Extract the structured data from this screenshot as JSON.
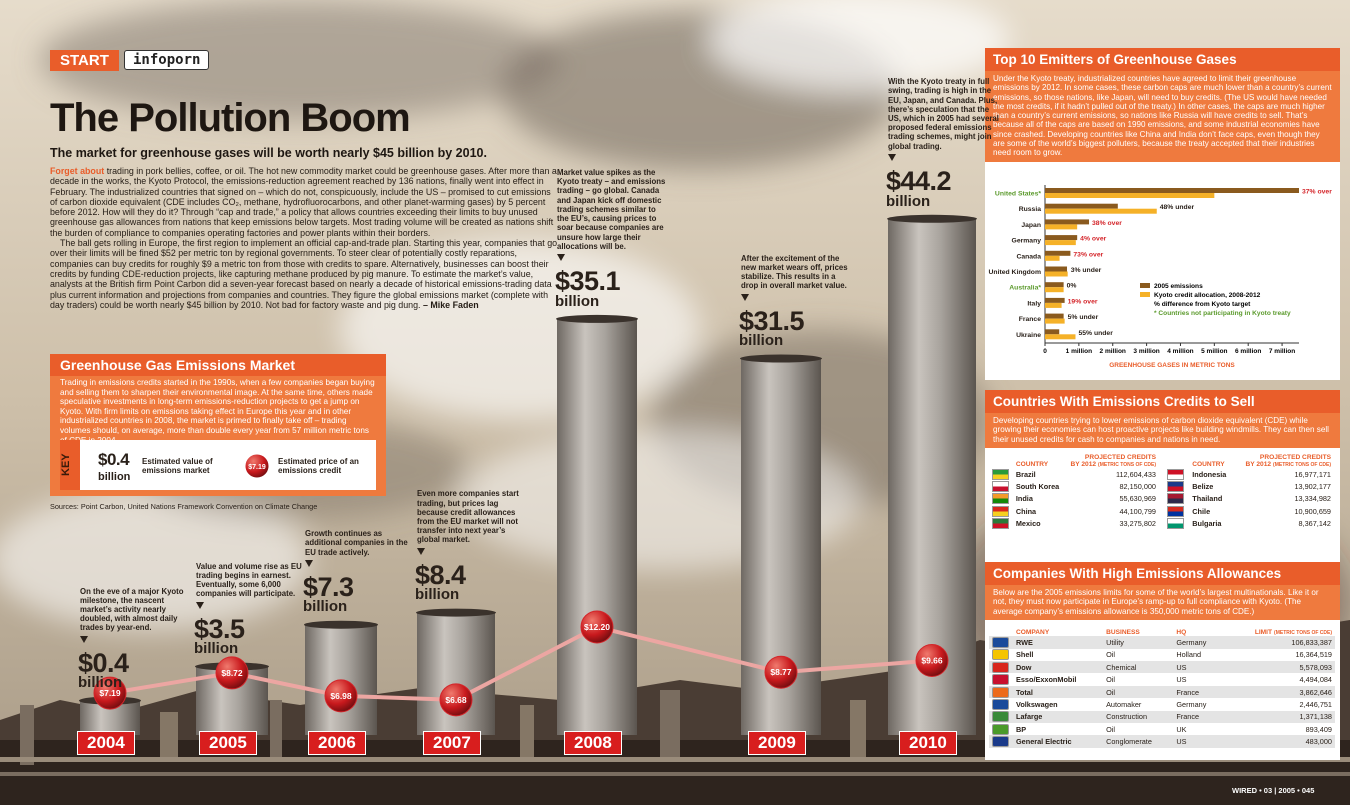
{
  "header": {
    "section": "START",
    "tag": "infoporn",
    "title": "The Pollution Boom",
    "subtitle": "The market for greenhouse gases will be worth nearly $45 billion by 2010."
  },
  "article": {
    "lead": "Forget about",
    "paragraphs": [
      " trading in pork bellies, coffee, or oil. The hot new commodity market could be greenhouse gases. After more than a decade in the works, the Kyoto Protocol, the emissions-reduction agreement reached by 136 nations, finally went into effect in February. The industrialized countries that signed on – which do not, conspicuously, include the US – promised to cut emissions of carbon dioxide equivalent (CDE includes CO₂, methane, hydrofluorocarbons, and other planet-warming gases) by 5 percent before 2012. How will they do it? Through “cap and trade,” a policy that allows countries exceeding their limits to buy unused greenhouse gas allowances from nations that keep emissions below targets. Most trading volume will be created as nations shift the burden of compliance to companies operating factories and power plants within their borders.",
      "The ball gets rolling in Europe, the first region to implement an official cap-and-trade plan. Starting this year, companies that go over their limits will be fined $52 per metric ton by regional governments. To steer clear of potentially costly reparations, companies can buy credits for roughly $9 a metric ton from those with credits to spare. Alternatively, businesses can boost their credits by funding CDE-reduction projects, like capturing methane produced by pig manure. To estimate the market’s value, analysts at the British firm Point Carbon did a seven-year forecast based on nearly a decade of historical emissions-trading data plus current information and projections from companies and countries. They figure the global emissions market (complete with day traders) could be worth nearly $45 billion by 2010. Not bad for factory waste and pig dung. "
    ],
    "byline": "– Mike Faden"
  },
  "chart_data": [
    {
      "type": "smokestack",
      "title": "Greenhouse Gas Emissions Market",
      "text": "Trading in emissions credits started in the 1990s, when a few companies began buying and selling them to sharpen their environmental image. At the same time, others made speculative investments in long-term emissions-reduction projects to get a jump on Kyoto. With firm limits on emissions taking effect in Europe this year and in other industrialized countries in 2008, the market is primed to finally take off – trading volumes should, on average, more than double every year from 57 million metric tons of CDE in 2004.",
      "key_label": "KEY",
      "sources": "Sources: Point Carbon, United Nations Framework Convention on Climate Change",
      "categories": [
        "2004",
        "2005",
        "2006",
        "2007",
        "2008",
        "2009",
        "2010"
      ],
      "unit": "billion",
      "series": [
        {
          "name": "Estimated value of emissions market",
          "color": "#9a9590",
          "values": [
            0.4,
            3.5,
            7.3,
            8.4,
            35.1,
            31.5,
            44.2
          ],
          "value_labels": [
            "$0.4",
            "$3.5",
            "$7.3",
            "$8.4",
            "$35.1",
            "$31.5",
            "$44.2"
          ]
        },
        {
          "name": "Estimated price of an emissions credit",
          "color": "#d4252a",
          "values": [
            7.19,
            8.72,
            6.98,
            6.68,
            12.2,
            8.77,
            9.66
          ],
          "value_labels": [
            "$7.19",
            "$8.72",
            "$6.98",
            "$6.68",
            "$12.20",
            "$8.77",
            "$9.66"
          ]
        }
      ],
      "annotations": [
        "On the eve of a major Kyoto milestone, the nascent market’s activity nearly doubled, with almost daily trades by year-end.",
        "Value and volume rise as EU trading begins in earnest. Eventually, some 6,000 companies will participate.",
        "Growth continues as additional companies in the EU trade actively.",
        "Even more companies start trading, but prices lag because credit allowances from the EU market will not transfer into next year’s global market.",
        "Market value spikes as the Kyoto treaty – and emissions trading – go global. Canada and Japan kick off domestic trading schemes similar to the EU’s, causing prices to soar because companies are unsure how large their allocations will be.",
        "After the excitement of the new market wears off, prices stabilize. This results in a drop in overall market value.",
        "With the Kyoto treaty in full swing, trading is high in the EU, Japan, and Canada. Plus, there’s speculation that the US, which in 2005 had several proposed federal emissions trading schemes, might join global trading."
      ]
    },
    {
      "type": "bar",
      "title": "Top 10 Emitters of Greenhouse Gases",
      "text": "Under the Kyoto treaty, industrialized countries have agreed to limit their greenhouse emissions by 2012. In some cases, these carbon caps are much lower than a country’s current emissions, so those nations, like Japan, will need to buy credits. (The US would have needed the most credits, if it hadn’t pulled out of the treaty.) In other cases, the caps are much higher than a country’s current emissions, so nations like Russia will have credits to sell. That’s because all of the caps are based on 1990 emissions, and some industrial economies have since crashed. Developing countries like China and India don’t face caps, even though they are some of the world’s biggest polluters, because the treaty accepted that their industries need room to grow.",
      "categories": [
        "United States*",
        "Russia",
        "Japan",
        "Germany",
        "Canada",
        "United Kingdom",
        "Australia*",
        "Italy",
        "France",
        "Ukraine"
      ],
      "non_kyoto": [
        true,
        false,
        false,
        false,
        false,
        false,
        true,
        false,
        false,
        false
      ],
      "non_kyoto_color": "#5b9a2c",
      "series": [
        {
          "name": "2005 emissions",
          "color": "#8a5a1e",
          "values": [
            7500000,
            2150000,
            1300000,
            950000,
            750000,
            650000,
            550000,
            580000,
            550000,
            420000
          ]
        },
        {
          "name": "Kyoto credit allocation, 2008-2012",
          "color": "#f5b128",
          "values": [
            5000000,
            3300000,
            950000,
            910000,
            430000,
            670000,
            550000,
            490000,
            580000,
            900000
          ]
        }
      ],
      "diff_labels": [
        "37% over",
        "48% under",
        "38% over",
        "4% over",
        "73% over",
        "3% under",
        "0%",
        "19% over",
        "5% under",
        "55% under"
      ],
      "diff_colors": [
        "#d4252a",
        "#2a211a",
        "#d4252a",
        "#d4252a",
        "#d4252a",
        "#2a211a",
        "#2a211a",
        "#d4252a",
        "#2a211a",
        "#2a211a"
      ],
      "diff_note": "% difference from Kyoto target",
      "footnote": "* Countries not participating in Kyoto treaty",
      "xlabel": "GREENHOUSE GASES IN METRIC TONS",
      "xlim": [
        0,
        7500000
      ],
      "xticks": [
        0,
        {
          "value": 1000000,
          "label": "1 million"
        },
        {
          "value": 2000000,
          "label": "2 million"
        },
        {
          "value": 3000000,
          "label": "3 million"
        },
        {
          "value": 4000000,
          "label": "4 million"
        },
        {
          "value": 5000000,
          "label": "5 million"
        },
        {
          "value": 6000000,
          "label": "6 million"
        },
        {
          "value": 7000000,
          "label": "7 million"
        }
      ]
    }
  ],
  "credits": {
    "title": "Countries With Emissions Credits to Sell",
    "text": "Developing countries trying to lower emissions of carbon dioxide equivalent (CDE) while growing their economies can host proactive projects like building windmills. They can then sell their unused credits for cash to companies and nations in need.",
    "headers": [
      "COUNTRY",
      "PROJECTED CREDITS",
      "BY 2012",
      "(METRIC TONS OF CDE)"
    ],
    "rows": [
      [
        "Brazil",
        "112,604,433"
      ],
      [
        "South Korea",
        "82,150,000"
      ],
      [
        "India",
        "55,630,969"
      ],
      [
        "China",
        "44,100,799"
      ],
      [
        "Mexico",
        "33,275,802"
      ],
      [
        "Indonesia",
        "16,977,171"
      ],
      [
        "Belize",
        "13,902,177"
      ],
      [
        "Thailand",
        "13,334,982"
      ],
      [
        "Chile",
        "10,900,659"
      ],
      [
        "Bulgaria",
        "8,367,142"
      ]
    ]
  },
  "companies": {
    "title": "Companies With High Emissions Allowances",
    "text": "Below are the 2005 emissions limits for some of the world’s largest multinationals. Like it or not, they must now participate in Europe’s ramp-up to full compliance with Kyoto. (The average company’s emissions allowance is 350,000 metric tons of CDE.)",
    "headers": [
      "COMPANY",
      "BUSINESS",
      "HQ",
      "LIMIT"
    ],
    "limit_unit": "(METRIC TONS OF CDE)",
    "rows": [
      [
        "RWE",
        "Utility",
        "Germany",
        "106,833,387"
      ],
      [
        "Shell",
        "Oil",
        "Holland",
        "16,364,519"
      ],
      [
        "Dow",
        "Chemical",
        "US",
        "5,578,093"
      ],
      [
        "Esso/ExxonMobil",
        "Oil",
        "US",
        "4,494,084"
      ],
      [
        "Total",
        "Oil",
        "France",
        "3,862,646"
      ],
      [
        "Volkswagen",
        "Automaker",
        "Germany",
        "2,446,751"
      ],
      [
        "Lafarge",
        "Construction",
        "France",
        "1,371,138"
      ],
      [
        "BP",
        "Oil",
        "UK",
        "893,409"
      ],
      [
        "General Electric",
        "Conglomerate",
        "US",
        "483,000"
      ]
    ]
  },
  "footer": "WIRED • 03 | 2005 • 045"
}
